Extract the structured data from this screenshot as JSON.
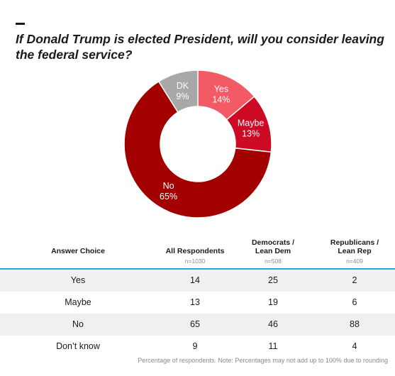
{
  "title": "If Donald Trump is elected President, will you consider leaving the federal service?",
  "chart_data": {
    "type": "pie",
    "style": "donut",
    "slices": [
      {
        "label": "Yes",
        "value": 14,
        "display": "14%",
        "color": "#f25a66",
        "text_color": "#ffffff"
      },
      {
        "label": "Maybe",
        "value": 13,
        "display": "13%",
        "color": "#cc0a24",
        "text_color": "#ffffff"
      },
      {
        "label": "No",
        "value": 65,
        "display": "65%",
        "color": "#a30000",
        "text_color": "#ffffff"
      },
      {
        "label": "DK",
        "value": 9,
        "display": "9%",
        "color": "#a8a8a8",
        "text_color": "#ffffff"
      }
    ]
  },
  "table": {
    "headers": [
      {
        "label": "Answer Choice",
        "n": ""
      },
      {
        "label": "All Respondents",
        "n": "n=1030"
      },
      {
        "label": "Democrats /\nLean Dem",
        "n": "n=508"
      },
      {
        "label": "Republicans /\nLean Rep",
        "n": "n=409"
      }
    ],
    "rows": [
      {
        "choice": "Yes",
        "all": "14",
        "dem": "25",
        "rep": "2"
      },
      {
        "choice": "Maybe",
        "all": "13",
        "dem": "19",
        "rep": "6"
      },
      {
        "choice": "No",
        "all": "65",
        "dem": "46",
        "rep": "88"
      },
      {
        "choice": "Don’t know",
        "all": "9",
        "dem": "11",
        "rep": "4"
      }
    ],
    "accent_color": "#2aa6d6"
  },
  "footnote": "Percentage of respondents. Note: Percentages may not add up to 100% due to rounding"
}
